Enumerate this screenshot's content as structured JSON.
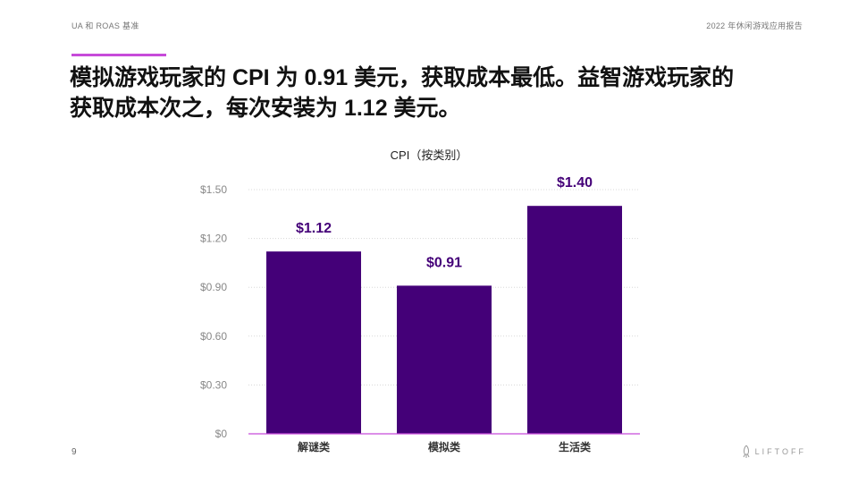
{
  "header": {
    "left": "UA 和 ROAS 基准",
    "right": "2022 年休闲游戏应用报告"
  },
  "headline": {
    "line1": "模拟游戏玩家的 CPI 为 0.91 美元，获取成本最低。益智游戏玩家的",
    "line2": "获取成本次之，每次安装为 1.12 美元。"
  },
  "page_number": "9",
  "logo": {
    "text": "LIFTOFF",
    "icon": "rocket-icon"
  },
  "colors": {
    "bar": "#440078",
    "accent": "#c74bd9",
    "grid": "#d8d8d8",
    "tick": "#888888"
  },
  "chart_data": {
    "type": "bar",
    "title": "CPI（按类别）",
    "categories": [
      "解谜类",
      "模拟类",
      "生活类"
    ],
    "values": [
      1.12,
      0.91,
      1.4
    ],
    "data_labels": [
      "$1.12",
      "$0.91",
      "$1.40"
    ],
    "yticks": [
      "$0",
      "$0.30",
      "$0.60",
      "$0.90",
      "$1.20",
      "$1.50"
    ],
    "ytick_values": [
      0,
      0.3,
      0.6,
      0.9,
      1.2,
      1.5
    ],
    "ylim": [
      0,
      1.5
    ],
    "grid": true,
    "legend": false
  }
}
